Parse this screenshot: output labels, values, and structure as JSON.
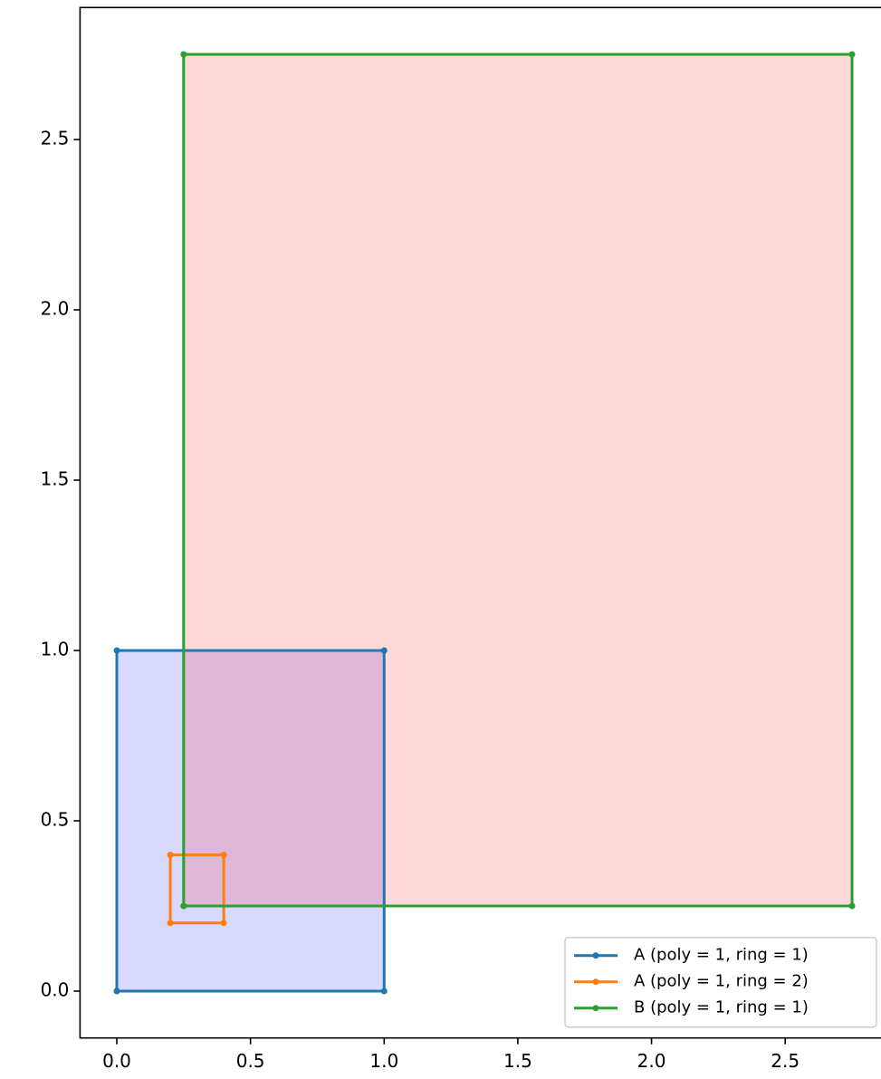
{
  "chart_data": {
    "type": "polygon",
    "xlim": [
      -0.1375,
      2.8875
    ],
    "ylim": [
      -0.1375,
      2.8875
    ],
    "xticks": [
      {
        "value": 0,
        "label": "0.0"
      },
      {
        "value": 0.5,
        "label": "0.5"
      },
      {
        "value": 1,
        "label": "1.0"
      },
      {
        "value": 1.5,
        "label": "1.5"
      },
      {
        "value": 2,
        "label": "2.0"
      },
      {
        "value": 2.5,
        "label": "2.5"
      }
    ],
    "yticks": [
      {
        "value": 0,
        "label": "0.0"
      },
      {
        "value": 0.5,
        "label": "0.5"
      },
      {
        "value": 1,
        "label": "1.0"
      },
      {
        "value": 1.5,
        "label": "1.5"
      },
      {
        "value": 2,
        "label": "2.0"
      },
      {
        "value": 2.5,
        "label": "2.5"
      }
    ],
    "fill_alpha": 0.15,
    "legend": "lower right",
    "series": [
      {
        "name": "A (poly = 1, ring = 1)",
        "color": "#1f77b4",
        "fill": "#0000ff",
        "x": [
          0,
          1,
          1,
          0,
          0
        ],
        "values": [
          0,
          0,
          1,
          1,
          0
        ]
      },
      {
        "name": "A (poly = 1, ring = 2)",
        "color": "#ff7f0e",
        "x": [
          0.2,
          0.4,
          0.4,
          0.2,
          0.2
        ],
        "values": [
          0.2,
          0.2,
          0.4,
          0.4,
          0.2
        ]
      },
      {
        "name": "B (poly = 1, ring = 1)",
        "color": "#2ca02c",
        "fill": "#ff0000",
        "x": [
          0.25,
          2.75,
          2.75,
          0.25,
          0.25
        ],
        "values": [
          0.25,
          0.25,
          2.75,
          2.75,
          0.25
        ]
      }
    ]
  }
}
